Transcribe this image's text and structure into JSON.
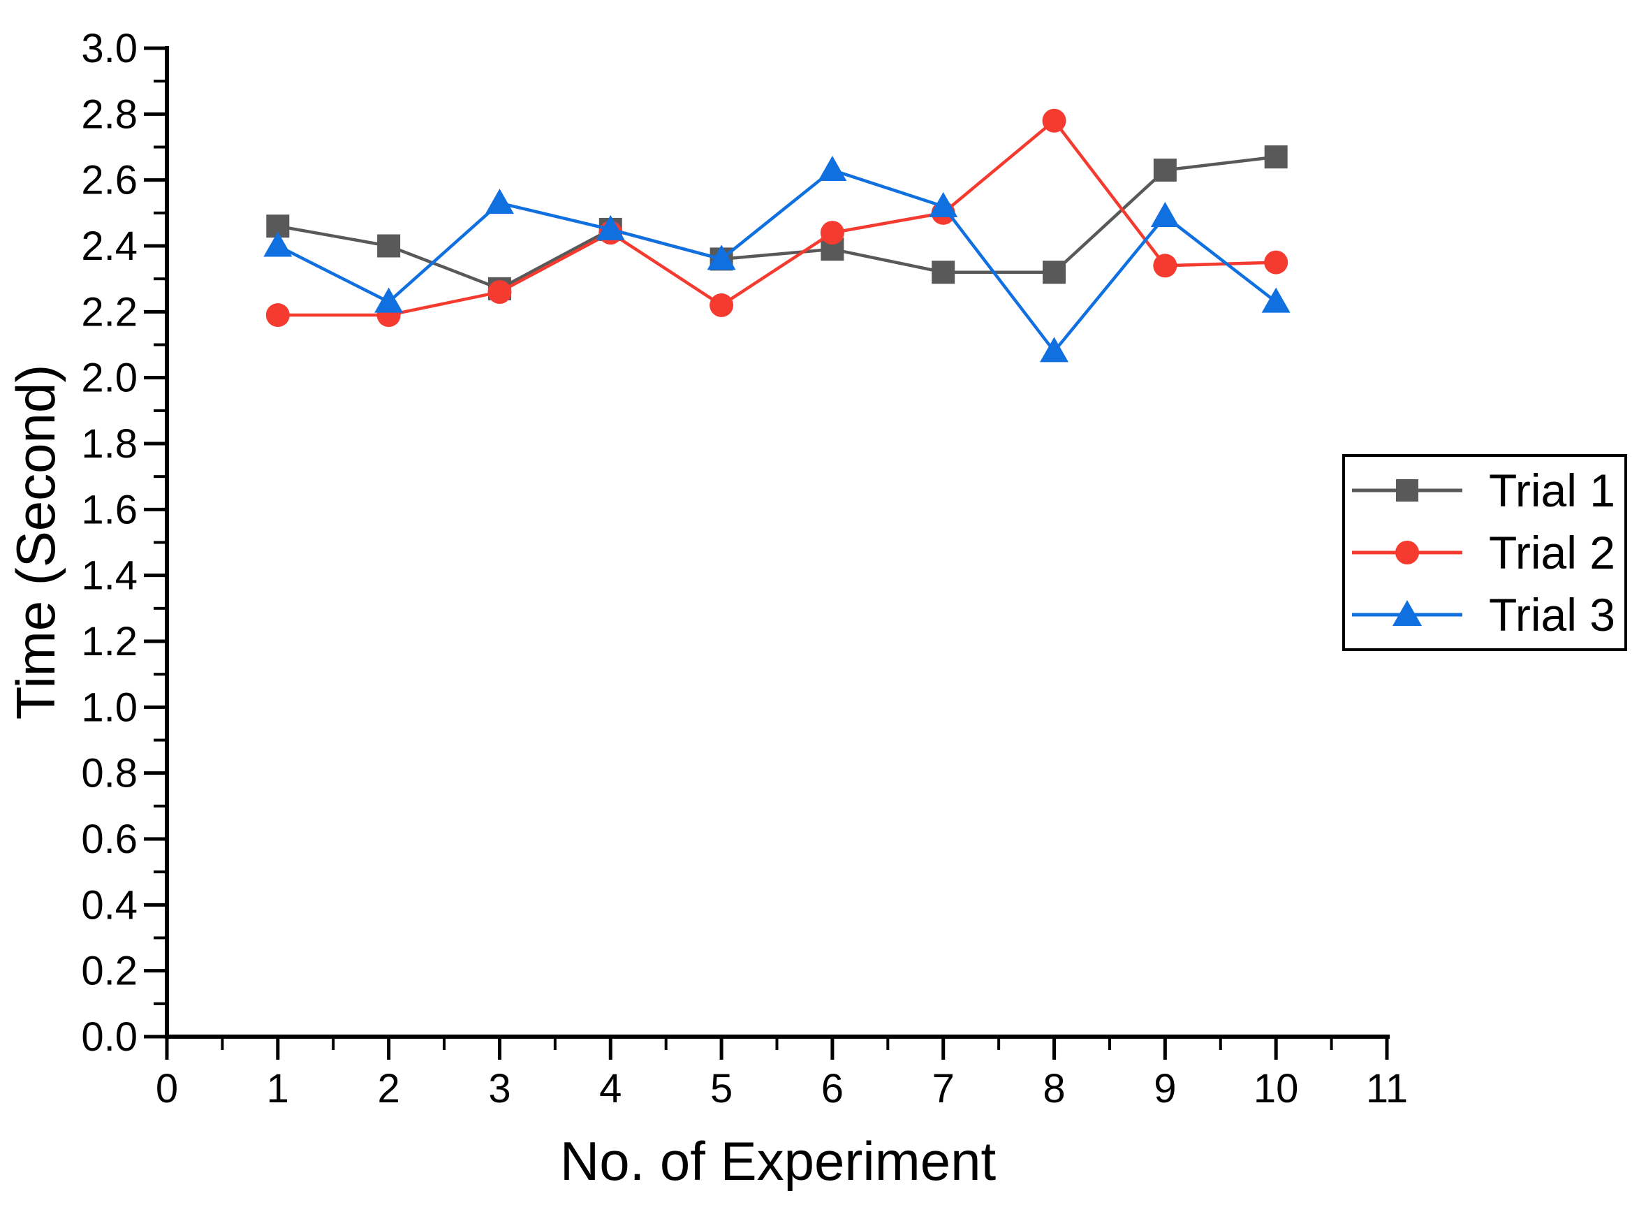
{
  "chart_data": {
    "type": "line",
    "title": "",
    "xlabel": "No. of Experiment",
    "ylabel": "Time (Second)",
    "xlim": [
      0,
      11
    ],
    "ylim": [
      0.0,
      3.0
    ],
    "x_tick_labels": [
      "0",
      "1",
      "2",
      "3",
      "4",
      "5",
      "6",
      "7",
      "8",
      "9",
      "10",
      "11"
    ],
    "y_tick_labels": [
      "0.0",
      "0.2",
      "0.4",
      "0.6",
      "0.8",
      "1.0",
      "1.2",
      "1.4",
      "1.6",
      "1.8",
      "2.0",
      "2.2",
      "2.4",
      "2.6",
      "2.8",
      "3.0"
    ],
    "x_minor_step": 0.5,
    "y_minor_step": 0.1,
    "grid": false,
    "legend_position": "right-upper-inside",
    "axis_color": "#000000",
    "x": [
      1,
      2,
      3,
      4,
      5,
      6,
      7,
      8,
      9,
      10
    ],
    "series": [
      {
        "name": "Trial 1",
        "marker": "square",
        "color": "#595959",
        "values": [
          2.46,
          2.4,
          2.27,
          2.45,
          2.36,
          2.39,
          2.32,
          2.32,
          2.63,
          2.67
        ]
      },
      {
        "name": "Trial 2",
        "marker": "circle",
        "color": "#F53B30",
        "values": [
          2.19,
          2.19,
          2.26,
          2.44,
          2.22,
          2.44,
          2.5,
          2.78,
          2.34,
          2.35
        ]
      },
      {
        "name": "Trial 3",
        "marker": "triangle",
        "color": "#1070E0",
        "values": [
          2.4,
          2.23,
          2.53,
          2.45,
          2.36,
          2.63,
          2.52,
          2.08,
          2.49,
          2.23
        ]
      }
    ]
  }
}
